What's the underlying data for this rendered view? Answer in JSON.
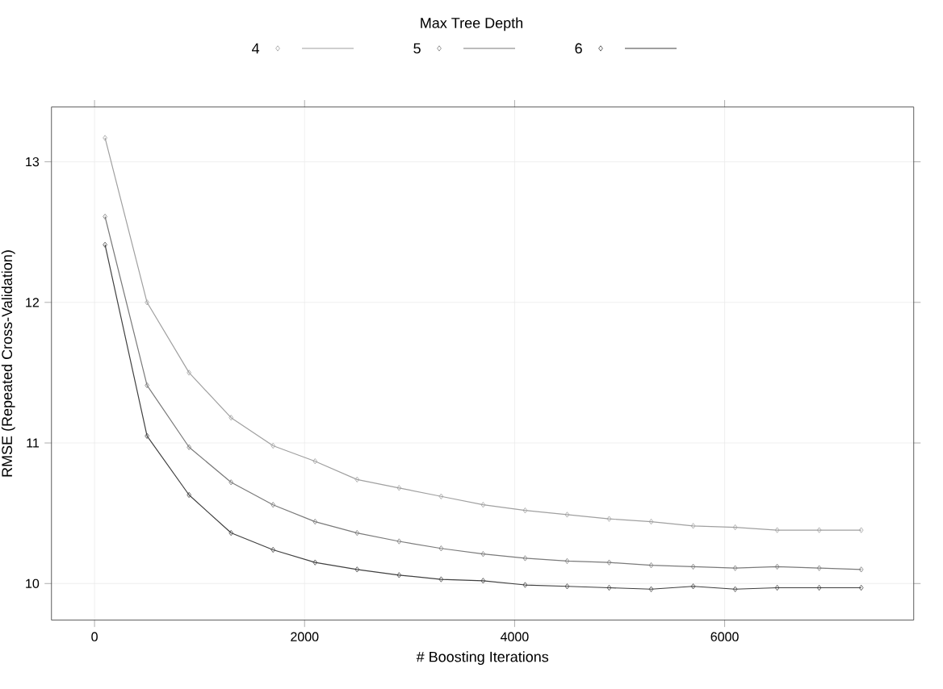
{
  "chart_data": {
    "type": "line",
    "xlabel": "# Boosting Iterations",
    "ylabel": "RMSE (Repeated Cross-Validation)",
    "legend_title": "Max Tree Depth",
    "legend": "top",
    "grid": true,
    "marker": "diamond",
    "line_style": "solid",
    "x": [
      100,
      500,
      900,
      1300,
      1700,
      2100,
      2500,
      2900,
      3300,
      3700,
      4100,
      4500,
      4900,
      5300,
      5700,
      6100,
      6500,
      6900,
      7300
    ],
    "xlim": [
      -410,
      7800
    ],
    "ylim": [
      9.74,
      13.39
    ],
    "xticks": [
      0,
      2000,
      4000,
      6000
    ],
    "yticks": [
      10,
      11,
      12,
      13
    ],
    "series": [
      {
        "name": "4",
        "color": "#a0a0a0",
        "values": [
          13.17,
          12.0,
          11.5,
          11.18,
          10.98,
          10.87,
          10.74,
          10.68,
          10.62,
          10.56,
          10.52,
          10.49,
          10.46,
          10.44,
          10.41,
          10.4,
          10.38,
          10.38,
          10.38
        ]
      },
      {
        "name": "5",
        "color": "#7a7a7a",
        "values": [
          12.61,
          11.41,
          10.97,
          10.72,
          10.56,
          10.44,
          10.36,
          10.3,
          10.25,
          10.21,
          10.18,
          10.16,
          10.15,
          10.13,
          10.12,
          10.11,
          10.12,
          10.11,
          10.1
        ]
      },
      {
        "name": "6",
        "color": "#404040",
        "values": [
          12.41,
          11.05,
          10.63,
          10.36,
          10.24,
          10.15,
          10.1,
          10.06,
          10.03,
          10.02,
          9.99,
          9.98,
          9.97,
          9.96,
          9.98,
          9.96,
          9.97,
          9.97,
          9.97
        ]
      }
    ]
  }
}
